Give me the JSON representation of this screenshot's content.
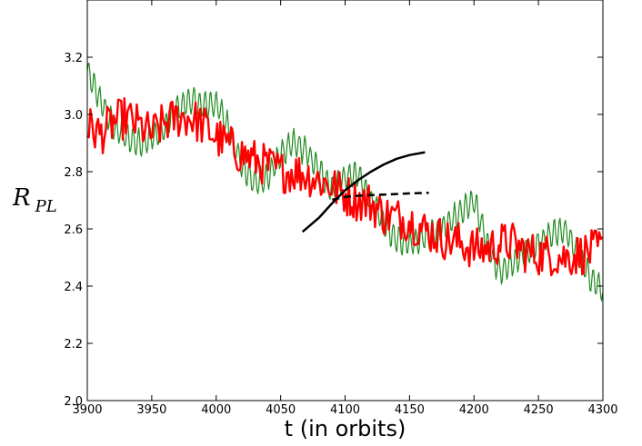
{
  "chart_data": {
    "type": "line",
    "xlabel": "t (in orbits)",
    "ylabel": {
      "main": "R",
      "sub": "PL"
    },
    "xlim": [
      3900,
      4300
    ],
    "ylim": [
      2.0,
      3.4
    ],
    "xticks": [
      3900,
      3950,
      4000,
      4050,
      4100,
      4150,
      4200,
      4250,
      4300
    ],
    "xtick_labels": [
      "3900",
      "3950",
      "4000",
      "4050",
      "4100",
      "4150",
      "4200",
      "4250",
      "4300"
    ],
    "yticks": [
      2.0,
      2.2,
      2.4,
      2.6,
      2.8,
      3.0,
      3.2
    ],
    "ytick_labels": [
      "2.0",
      "2.2",
      "2.4",
      "2.6",
      "2.8",
      "3.0",
      "3.2"
    ],
    "grid": false,
    "legend": "none",
    "series": [
      {
        "style": "thin-green",
        "color": "#228b22",
        "x": [
          3900,
          3910,
          3920,
          3930,
          3940,
          3950,
          3960,
          3970,
          3980,
          3990,
          4000,
          4010,
          4020,
          4030,
          4040,
          4050,
          4060,
          4070,
          4080,
          4090,
          4100,
          4110,
          4120,
          4130,
          4140,
          4150,
          4160,
          4170,
          4180,
          4190,
          4200,
          4210,
          4220,
          4230,
          4240,
          4250,
          4260,
          4270,
          4280,
          4290,
          4300
        ],
        "y": [
          3.15,
          3.05,
          2.96,
          2.92,
          2.9,
          2.92,
          2.95,
          3.02,
          3.05,
          3.03,
          3.04,
          2.95,
          2.82,
          2.76,
          2.78,
          2.86,
          2.9,
          2.87,
          2.8,
          2.74,
          2.78,
          2.79,
          2.7,
          2.62,
          2.56,
          2.55,
          2.57,
          2.59,
          2.62,
          2.66,
          2.7,
          2.55,
          2.45,
          2.48,
          2.52,
          2.55,
          2.58,
          2.6,
          2.52,
          2.43,
          2.39
        ]
      },
      {
        "style": "thick-red",
        "color": "#ff0000",
        "x": [
          3900,
          3910,
          3920,
          3930,
          3940,
          3950,
          3960,
          3970,
          3980,
          3990,
          4000,
          4010,
          4020,
          4030,
          4040,
          4050,
          4060,
          4070,
          4080,
          4090,
          4100,
          4110,
          4120,
          4130,
          4140,
          4150,
          4160,
          4170,
          4180,
          4190,
          4200,
          4210,
          4220,
          4230,
          4240,
          4250,
          4260,
          4270,
          4280,
          4290,
          4300
        ],
        "y": [
          2.96,
          2.93,
          2.97,
          2.99,
          2.96,
          2.93,
          2.97,
          2.99,
          2.99,
          2.96,
          2.92,
          2.89,
          2.86,
          2.84,
          2.82,
          2.8,
          2.8,
          2.79,
          2.77,
          2.75,
          2.72,
          2.7,
          2.69,
          2.65,
          2.64,
          2.63,
          2.6,
          2.58,
          2.56,
          2.55,
          2.53,
          2.53,
          2.55,
          2.55,
          2.52,
          2.51,
          2.51,
          2.5,
          2.51,
          2.52,
          2.53
        ]
      },
      {
        "style": "thick-black-solid",
        "color": "#000000",
        "x": [
          4067,
          4080,
          4090,
          4100,
          4110,
          4120,
          4130,
          4140,
          4150,
          4162
        ],
        "y": [
          2.59,
          2.64,
          2.69,
          2.735,
          2.77,
          2.8,
          2.825,
          2.845,
          2.858,
          2.868
        ]
      },
      {
        "style": "thick-black-dashed",
        "color": "#000000",
        "x": [
          4090,
          4100,
          4110,
          4120,
          4130,
          4140,
          4150,
          4165
        ],
        "y": [
          2.702,
          2.712,
          2.716,
          2.718,
          2.72,
          2.722,
          2.724,
          2.726
        ]
      }
    ]
  }
}
